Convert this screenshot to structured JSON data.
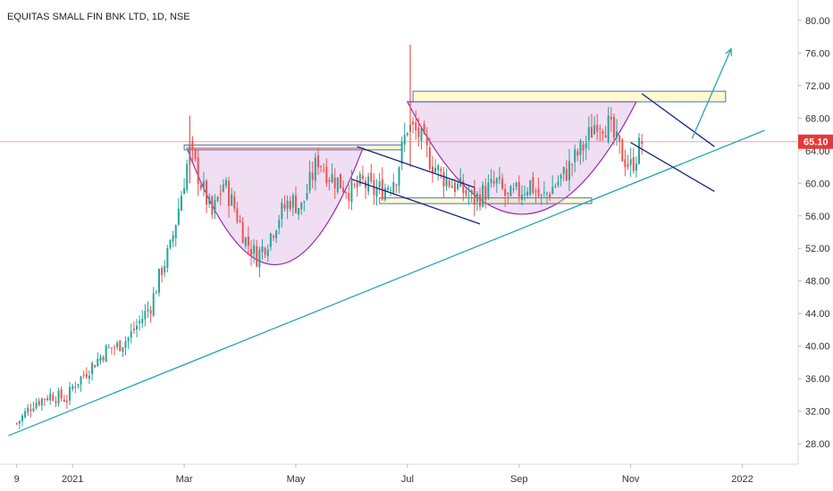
{
  "chart_data": {
    "type": "candlestick",
    "title": "EQUITAS SMALL FIN BNK LTD, 1D, NSE",
    "last_price": "65.10",
    "y_ticks": [
      "28.00",
      "32.00",
      "36.00",
      "40.00",
      "44.00",
      "48.00",
      "52.00",
      "56.00",
      "60.00",
      "64.00",
      "68.00",
      "72.00",
      "76.00",
      "80.00"
    ],
    "y_range": [
      25.5,
      82.5
    ],
    "x_labels": [
      {
        "label": "9",
        "month": 0
      },
      {
        "label": "2021",
        "month": 1
      },
      {
        "label": "Mar",
        "month": 3
      },
      {
        "label": "May",
        "month": 5
      },
      {
        "label": "Jul",
        "month": 7
      },
      {
        "label": "Sep",
        "month": 9
      },
      {
        "label": "Nov",
        "month": 11
      },
      {
        "label": "2022",
        "month": 13
      }
    ],
    "x_range_months": [
      -0.3,
      14.0
    ],
    "price_path": [
      [
        0.0,
        30.5
      ],
      [
        0.3,
        33.0
      ],
      [
        0.6,
        34.0
      ],
      [
        0.9,
        33.5
      ],
      [
        1.0,
        35.0
      ],
      [
        1.2,
        36.5
      ],
      [
        1.4,
        38.0
      ],
      [
        1.6,
        39.5
      ],
      [
        1.8,
        40.0
      ],
      [
        2.0,
        41.0
      ],
      [
        2.2,
        43.0
      ],
      [
        2.4,
        45.0
      ],
      [
        2.6,
        49.5
      ],
      [
        2.75,
        52.0
      ],
      [
        2.9,
        57.0
      ],
      [
        3.1,
        64.0
      ],
      [
        3.3,
        60.0
      ],
      [
        3.5,
        56.0
      ],
      [
        3.7,
        60.0
      ],
      [
        3.9,
        57.0
      ],
      [
        4.1,
        53.0
      ],
      [
        4.3,
        51.0
      ],
      [
        4.5,
        53.0
      ],
      [
        4.7,
        56.0
      ],
      [
        4.9,
        58.0
      ],
      [
        5.1,
        57.0
      ],
      [
        5.4,
        63.0
      ],
      [
        5.6,
        61.0
      ],
      [
        5.8,
        60.0
      ],
      [
        6.0,
        59.0
      ],
      [
        6.2,
        60.0
      ],
      [
        6.4,
        59.0
      ],
      [
        6.6,
        59.5
      ],
      [
        6.8,
        61.0
      ],
      [
        7.0,
        67.0
      ],
      [
        7.2,
        66.0
      ],
      [
        7.4,
        63.0
      ],
      [
        7.6,
        61.0
      ],
      [
        7.8,
        60.0
      ],
      [
        8.0,
        59.0
      ],
      [
        8.2,
        58.0
      ],
      [
        8.4,
        59.0
      ],
      [
        8.6,
        60.0
      ],
      [
        8.8,
        58.0
      ],
      [
        9.0,
        59.0
      ],
      [
        9.2,
        60.0
      ],
      [
        9.4,
        58.0
      ],
      [
        9.6,
        59.5
      ],
      [
        9.8,
        61.0
      ],
      [
        10.0,
        63.0
      ],
      [
        10.2,
        65.0
      ],
      [
        10.4,
        68.0
      ],
      [
        10.6,
        67.0
      ],
      [
        10.8,
        64.0
      ],
      [
        11.0,
        62.0
      ],
      [
        11.2,
        65.1
      ]
    ],
    "spikes": [
      {
        "month": 3.1,
        "high": 68.3,
        "low": 60.0
      },
      {
        "month": 7.05,
        "high": 77.0,
        "low": 62.0
      }
    ],
    "annotations": {
      "horizontal_line_price": 65.1,
      "trendline": [
        [
          -0.15,
          29.0
        ],
        [
          13.4,
          66.5
        ]
      ],
      "zones": [
        {
          "x1": 3.0,
          "x2": 6.9,
          "y_low": 64.1,
          "y_high": 64.7
        },
        {
          "x1": 6.5,
          "x2": 10.3,
          "y_low": 57.5,
          "y_high": 58.2
        },
        {
          "x1": 7.1,
          "x2": 12.7,
          "y_low": 70.0,
          "y_high": 71.3
        }
      ],
      "cups": [
        {
          "x1": 3.05,
          "x2": 6.2,
          "top": 64.3,
          "bottom": 50.0
        },
        {
          "x1": 7.0,
          "x2": 11.1,
          "top": 70.0,
          "bottom": 56.2
        }
      ],
      "channels": [
        [
          [
            6.1,
            64.5
          ],
          [
            8.2,
            59.5
          ]
        ],
        [
          [
            6.0,
            60.5
          ],
          [
            8.3,
            55.0
          ]
        ],
        [
          [
            11.2,
            71.0
          ],
          [
            12.5,
            64.5
          ]
        ],
        [
          [
            11.0,
            65.0
          ],
          [
            12.5,
            59.0
          ]
        ]
      ],
      "forecast_arrow": [
        [
          12.1,
          65.5
        ],
        [
          12.8,
          76.5
        ]
      ]
    }
  }
}
